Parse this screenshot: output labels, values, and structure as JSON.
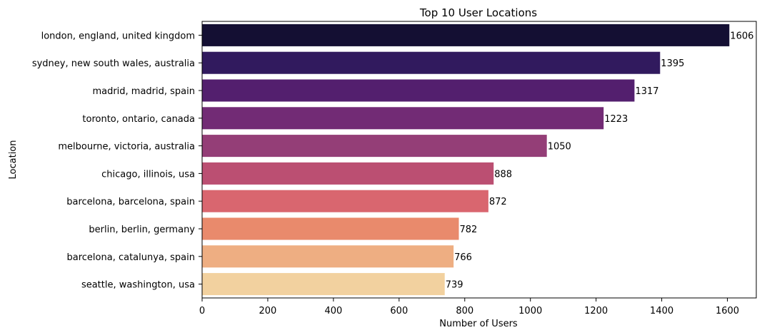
{
  "chart_data": {
    "type": "bar",
    "orientation": "horizontal",
    "title": "Top 10 User Locations",
    "xlabel": "Number of Users",
    "ylabel": "Location",
    "xlim": [
      0,
      1688
    ],
    "xticks": [
      0,
      200,
      400,
      600,
      800,
      1000,
      1200,
      1400,
      1600
    ],
    "grid": false,
    "categories": [
      "london, england, united kingdom",
      "sydney, new south wales, australia",
      "madrid, madrid, spain",
      "toronto, ontario, canada",
      "melbourne, victoria, australia",
      "chicago, illinois, usa",
      "barcelona, barcelona, spain",
      "berlin, berlin, germany",
      "barcelona, catalunya, spain",
      "seattle, washington, usa"
    ],
    "values": [
      1606,
      1395,
      1317,
      1223,
      1050,
      888,
      872,
      782,
      766,
      739
    ],
    "colors": [
      "#140f33",
      "#311a5e",
      "#531f6e",
      "#722b75",
      "#943e77",
      "#bb4f72",
      "#d9666f",
      "#e98a6c",
      "#eeae82",
      "#f2d19f"
    ]
  }
}
